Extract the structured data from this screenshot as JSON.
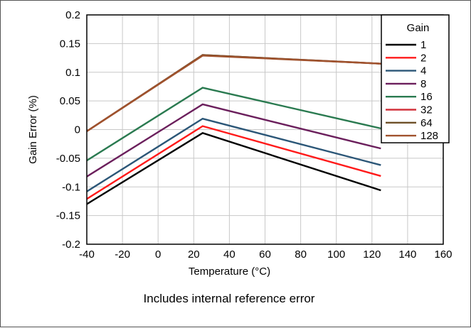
{
  "chart_data": {
    "type": "line",
    "title": "",
    "xlabel": "Temperature (°C)",
    "ylabel": "Gain Error (%)",
    "xlim": [
      -40,
      160
    ],
    "ylim": [
      -0.2,
      0.2
    ],
    "x_ticks": [
      "-40",
      "-20",
      "0",
      "20",
      "40",
      "60",
      "80",
      "100",
      "120",
      "140",
      "160"
    ],
    "y_ticks": [
      "0.2",
      "0.15",
      "0.1",
      "0.05",
      "0",
      "-0.05",
      "-0.1",
      "-0.15",
      "-0.2"
    ],
    "grid": true,
    "legend": {
      "title": "Gain",
      "placement": "top-right"
    },
    "x": [
      -40,
      25,
      125
    ],
    "series": [
      {
        "name": "1",
        "color": "#000000",
        "values": [
          -0.13,
          -0.006,
          -0.106
        ]
      },
      {
        "name": "2",
        "color": "#ff1a1a",
        "values": [
          -0.121,
          0.006,
          -0.081
        ]
      },
      {
        "name": "4",
        "color": "#2b5677",
        "values": [
          -0.108,
          0.019,
          -0.062
        ]
      },
      {
        "name": "8",
        "color": "#6b1f5c",
        "values": [
          -0.082,
          0.044,
          -0.033
        ]
      },
      {
        "name": "16",
        "color": "#2a7a50",
        "values": [
          -0.054,
          0.073,
          0.002
        ]
      },
      {
        "name": "32",
        "color": "#d2323c",
        "values": [
          -0.003,
          0.13,
          0.115
        ]
      },
      {
        "name": "64",
        "color": "#6e5028",
        "values": [
          -0.003,
          0.13,
          0.115
        ]
      },
      {
        "name": "128",
        "color": "#a0522d",
        "values": [
          -0.003,
          0.129,
          0.115
        ]
      }
    ]
  },
  "caption": "Includes internal reference error"
}
